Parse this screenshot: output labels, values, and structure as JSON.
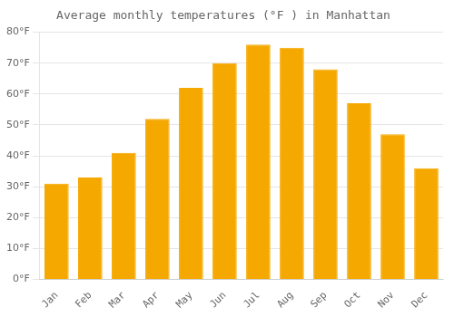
{
  "chart_data": {
    "type": "bar",
    "title": "Average monthly temperatures (°F ) in Manhattan",
    "categories": [
      "Jan",
      "Feb",
      "Mar",
      "Apr",
      "May",
      "Jun",
      "Jul",
      "Aug",
      "Sep",
      "Oct",
      "Nov",
      "Dec"
    ],
    "values": [
      31,
      33,
      41,
      52,
      62,
      70,
      76,
      75,
      68,
      57,
      47,
      36
    ],
    "color": "#F5A800",
    "ylim": [
      0,
      80
    ],
    "yticks": [
      {
        "value": 0,
        "label": "0°F"
      },
      {
        "value": 10,
        "label": "10°F"
      },
      {
        "value": 20,
        "label": "20°F"
      },
      {
        "value": 30,
        "label": "30°F"
      },
      {
        "value": 40,
        "label": "40°F"
      },
      {
        "value": 50,
        "label": "50°F"
      },
      {
        "value": 60,
        "label": "60°F"
      },
      {
        "value": 70,
        "label": "70°F"
      },
      {
        "value": 80,
        "label": "80°F"
      }
    ],
    "grid": true
  }
}
